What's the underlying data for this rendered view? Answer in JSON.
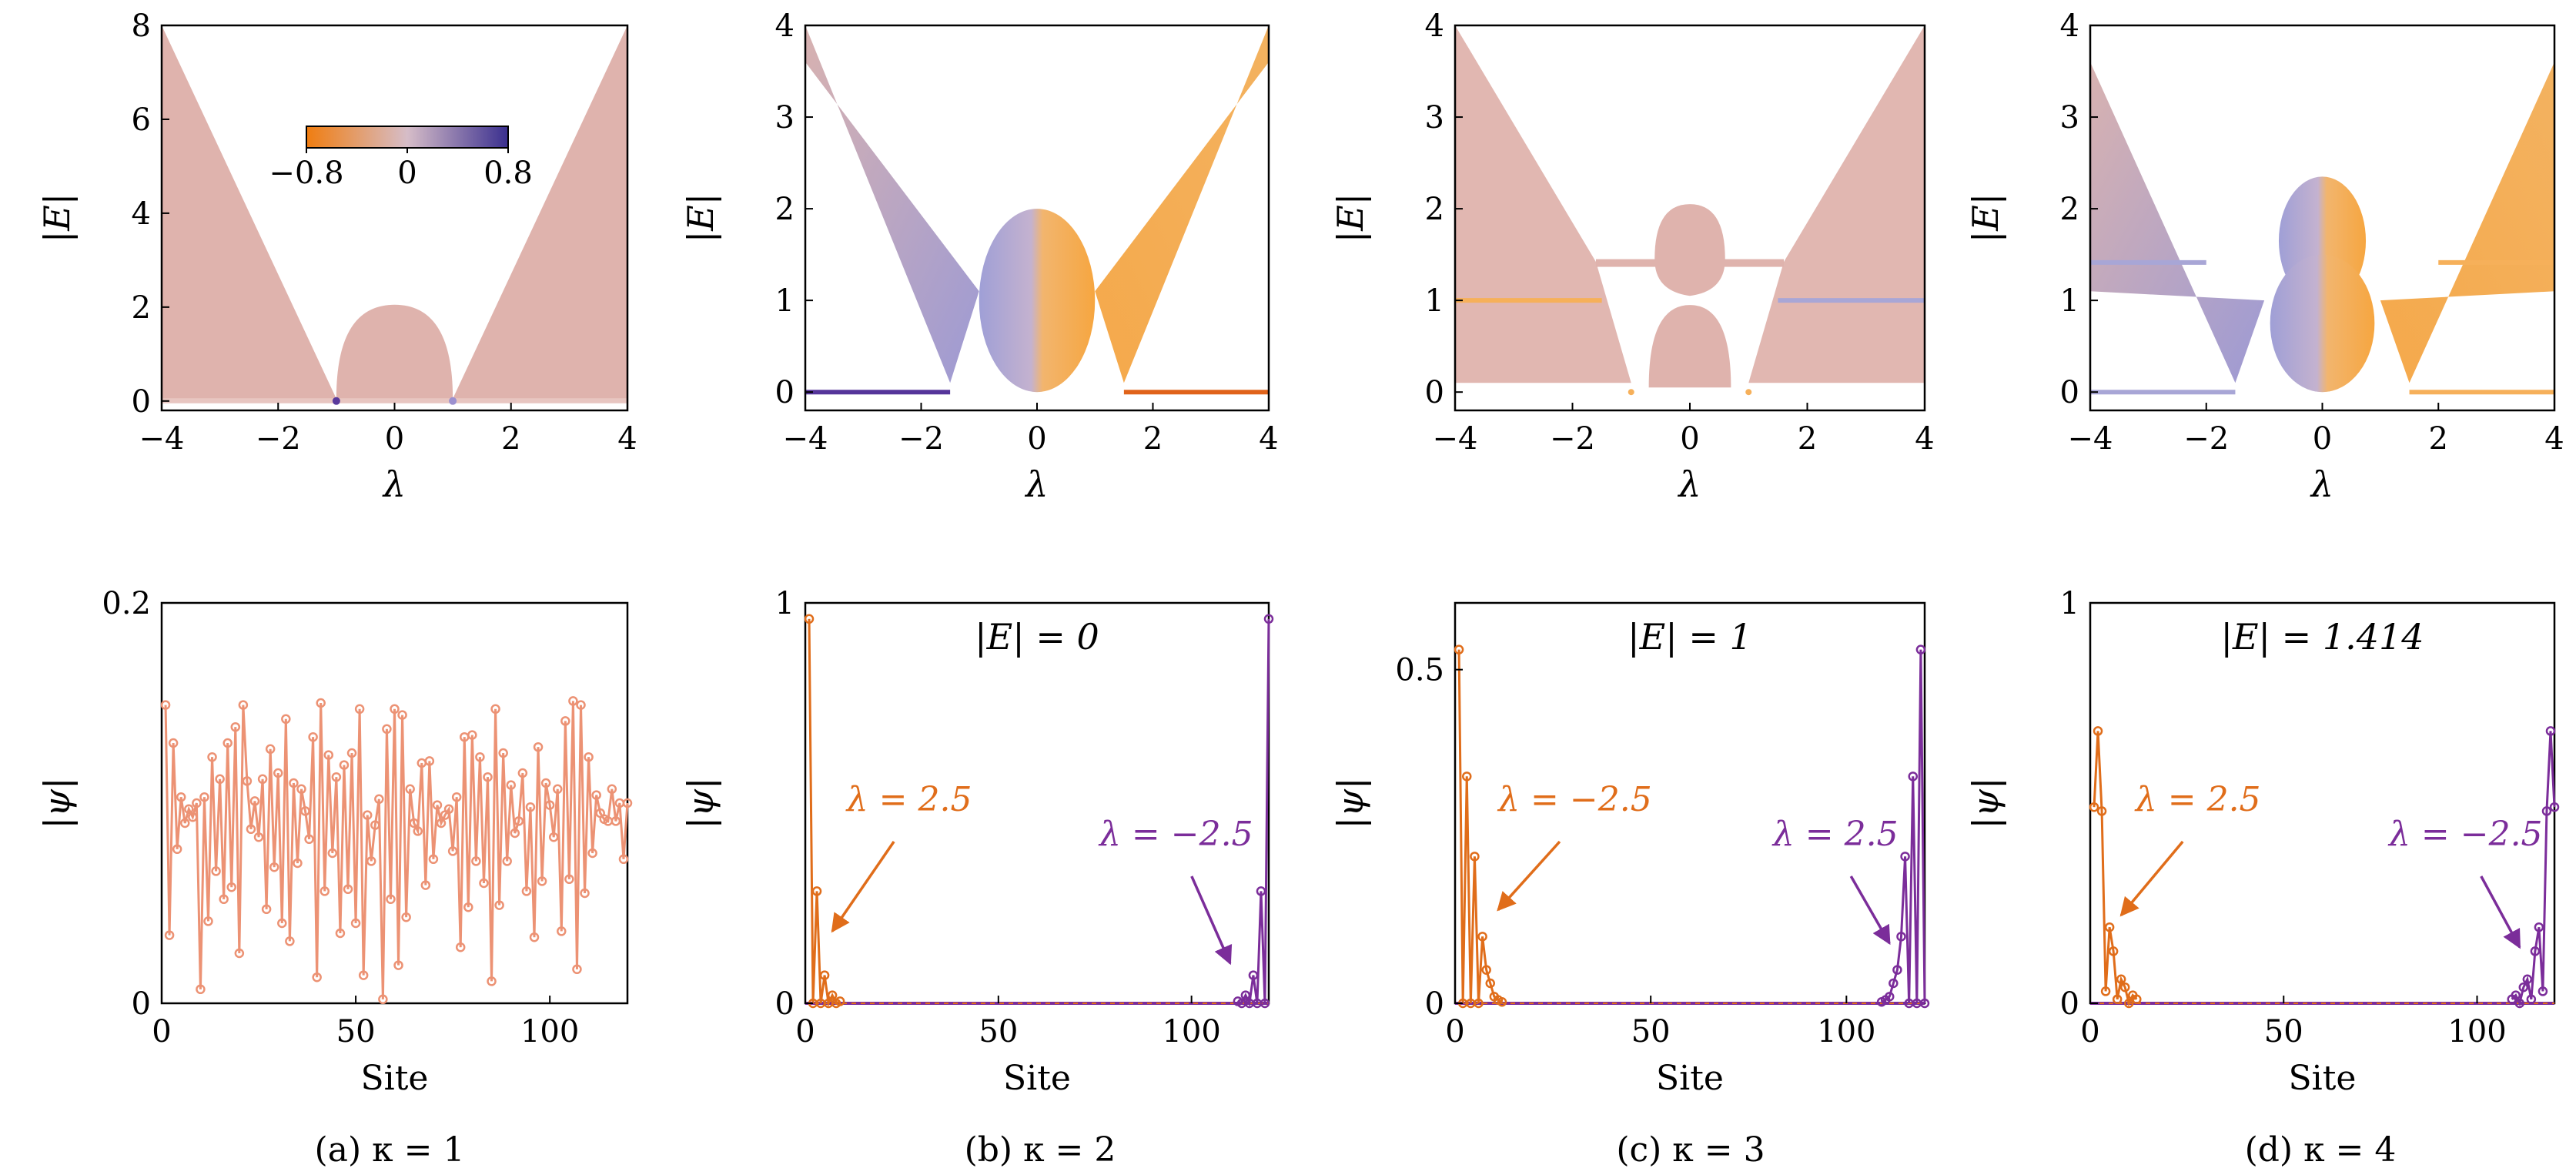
{
  "colors": {
    "orange": "#e06d1a",
    "purple": "#7b2d9a",
    "salmon": "#ec9274",
    "pink_band": "#dfb3ad",
    "cb_left": "#f08a1e",
    "cb_mid": "#cfc0d6",
    "cb_right": "#3a2f8f",
    "light_orange": "#f6b05a",
    "light_purple": "#a8a6d6"
  },
  "colorbar": {
    "ticks": [
      "−0.8",
      "0",
      "0.8"
    ],
    "range": [
      -0.8,
      0.8
    ]
  },
  "chart_data": [
    {
      "id": "a-top",
      "type": "scatter",
      "description_kind": "spectrum",
      "xlabel": "λ",
      "ylabel": "|E|",
      "xlim": [
        -4,
        4
      ],
      "ylim": [
        -0.2,
        8
      ],
      "xticks": [
        "−4",
        "−2",
        "0",
        "2",
        "4"
      ],
      "yticks": [
        "0",
        "2",
        "4",
        "6",
        "8"
      ],
      "ytick_values": [
        0,
        2,
        4,
        6,
        8
      ],
      "xtick_values": [
        -4,
        -2,
        0,
        2,
        4
      ],
      "spectrum": {
        "outer_max_at_edge": 8,
        "dome_peak": 2,
        "dome_halfwidth": 1,
        "points": [
          {
            "x": -1,
            "y": 0,
            "name": "zero-mode-left"
          },
          {
            "x": 1,
            "y": 0,
            "name": "zero-mode-right"
          }
        ]
      }
    },
    {
      "id": "b-top",
      "type": "scatter",
      "description_kind": "spectrum",
      "xlabel": "λ",
      "ylabel": "|E|",
      "xlim": [
        -4,
        4
      ],
      "ylim": [
        -0.2,
        4
      ],
      "xticks": [
        "−4",
        "−2",
        "0",
        "2",
        "4"
      ],
      "yticks": [
        "0",
        "1",
        "2",
        "3",
        "4"
      ],
      "ytick_values": [
        0,
        1,
        2,
        3,
        4
      ],
      "xtick_values": [
        -4,
        -2,
        0,
        2,
        4
      ],
      "spectrum": {
        "ellipse_peak": 2,
        "ellipse_halfwidth": 1,
        "zero_mode_left": [
          -4,
          -1.5
        ],
        "zero_mode_right": [
          1.5,
          4
        ]
      }
    },
    {
      "id": "c-top",
      "type": "scatter",
      "description_kind": "spectrum",
      "xlabel": "λ",
      "ylabel": "|E|",
      "xlim": [
        -4,
        4
      ],
      "ylim": [
        -0.2,
        4
      ],
      "xticks": [
        "−4",
        "−2",
        "0",
        "2",
        "4"
      ],
      "yticks": [
        "0",
        "1",
        "2",
        "3",
        "4"
      ],
      "ytick_values": [
        0,
        1,
        2,
        3,
        4
      ],
      "xtick_values": [
        -4,
        -2,
        0,
        2,
        4
      ],
      "spectrum": {
        "flat_level": 1,
        "flat_left": [
          -4,
          -1.5
        ],
        "flat_right": [
          1.5,
          4
        ]
      }
    },
    {
      "id": "d-top",
      "type": "scatter",
      "description_kind": "spectrum",
      "xlabel": "λ",
      "ylabel": "|E|",
      "xlim": [
        -4,
        4
      ],
      "ylim": [
        -0.2,
        4
      ],
      "xticks": [
        "−4",
        "−2",
        "0",
        "2",
        "4"
      ],
      "yticks": [
        "0",
        "1",
        "2",
        "3",
        "4"
      ],
      "ytick_values": [
        0,
        1,
        2,
        3,
        4
      ],
      "xtick_values": [
        -4,
        -2,
        0,
        2,
        4
      ],
      "spectrum": {
        "flat_level": 1.414,
        "zero_mode_left": [
          -4,
          -1.5
        ],
        "zero_mode_right": [
          1.5,
          4
        ]
      }
    },
    {
      "id": "a-bottom",
      "type": "line",
      "xlabel": "Site",
      "ylabel": "|ψ|",
      "xlim": [
        0,
        120
      ],
      "ylim": [
        0,
        0.2
      ],
      "xticks": [
        "0",
        "50",
        "100"
      ],
      "xtick_values": [
        0,
        50,
        100
      ],
      "yticks": [
        "0",
        "0.2"
      ],
      "ytick_values": [
        0,
        0.2
      ],
      "series": [
        {
          "name": "extended",
          "color": "salmon",
          "x_start": 1,
          "values": [
            0.149,
            0.034,
            0.13,
            0.077,
            0.103,
            0.09,
            0.097,
            0.093,
            0.1,
            0.007,
            0.103,
            0.041,
            0.123,
            0.066,
            0.112,
            0.052,
            0.13,
            0.058,
            0.138,
            0.025,
            0.149,
            0.111,
            0.087,
            0.101,
            0.083,
            0.112,
            0.047,
            0.127,
            0.068,
            0.115,
            0.04,
            0.142,
            0.031,
            0.11,
            0.07,
            0.107,
            0.096,
            0.082,
            0.133,
            0.013,
            0.15,
            0.056,
            0.124,
            0.075,
            0.113,
            0.035,
            0.119,
            0.057,
            0.125,
            0.04,
            0.147,
            0.014,
            0.094,
            0.071,
            0.089,
            0.102,
            0.002,
            0.137,
            0.052,
            0.147,
            0.019,
            0.144,
            0.043,
            0.107,
            0.09,
            0.086,
            0.12,
            0.059,
            0.121,
            0.072,
            0.099,
            0.09,
            0.094,
            0.097,
            0.076,
            0.103,
            0.028,
            0.133,
            0.048,
            0.134,
            0.071,
            0.123,
            0.06,
            0.113,
            0.011,
            0.147,
            0.049,
            0.125,
            0.071,
            0.109,
            0.085,
            0.091,
            0.115,
            0.056,
            0.098,
            0.033,
            0.128,
            0.061,
            0.11,
            0.099,
            0.083,
            0.107,
            0.036,
            0.141,
            0.062,
            0.151,
            0.017,
            0.149,
            0.055,
            0.123,
            0.075,
            0.104,
            0.095,
            0.092,
            0.091,
            0.107,
            0.091,
            0.1,
            0.072,
            0.1
          ]
        }
      ]
    },
    {
      "id": "b-bottom",
      "type": "line",
      "xlabel": "Site",
      "ylabel": "|ψ|",
      "xlim": [
        0,
        120
      ],
      "ylim": [
        0,
        1
      ],
      "xticks": [
        "0",
        "50",
        "100"
      ],
      "xtick_values": [
        0,
        50,
        100
      ],
      "yticks": [
        "0",
        "1"
      ],
      "ytick_values": [
        0,
        1
      ],
      "inset_label": "|E| = 0",
      "series": [
        {
          "name": "λ = 2.5",
          "color": "orange",
          "x_start": 1,
          "values": [
            0.96,
            0.0,
            0.28,
            0.0,
            0.07,
            0.0,
            0.02,
            0.0,
            0.005
          ]
        },
        {
          "name": "λ = −2.5",
          "color": "purple",
          "x_end": 120,
          "values": [
            0.005,
            0.0,
            0.02,
            0.0,
            0.07,
            0.0,
            0.28,
            0.0,
            0.96
          ]
        }
      ],
      "annotations": [
        {
          "text": "λ = 2.5",
          "color": "orange",
          "target": [
            7,
            0.18
          ]
        },
        {
          "text": "λ = −2.5",
          "color": "purple",
          "target": [
            110,
            0.1
          ]
        }
      ]
    },
    {
      "id": "c-bottom",
      "type": "line",
      "xlabel": "Site",
      "ylabel": "|ψ|",
      "xlim": [
        0,
        120
      ],
      "ylim": [
        0,
        0.6
      ],
      "xticks": [
        "0",
        "50",
        "100"
      ],
      "xtick_values": [
        0,
        50,
        100
      ],
      "yticks": [
        "0",
        "0.5"
      ],
      "ytick_values": [
        0,
        0.5
      ],
      "inset_label": "|E| = 1",
      "series": [
        {
          "name": "λ = −2.5",
          "color": "orange",
          "x_start": 1,
          "values": [
            0.53,
            0.0,
            0.34,
            0.0,
            0.22,
            0.0,
            0.1,
            0.05,
            0.03,
            0.01,
            0.005,
            0.002
          ]
        },
        {
          "name": "λ = 2.5",
          "color": "purple",
          "x_end": 120,
          "values": [
            0.002,
            0.005,
            0.01,
            0.03,
            0.05,
            0.1,
            0.22,
            0.0,
            0.34,
            0.0,
            0.53,
            0.0
          ]
        }
      ],
      "annotations": [
        {
          "text": "λ = −2.5",
          "color": "orange",
          "target": [
            11,
            0.14
          ]
        },
        {
          "text": "λ = 2.5",
          "color": "purple",
          "target": [
            111,
            0.09
          ]
        }
      ]
    },
    {
      "id": "d-bottom",
      "type": "line",
      "xlabel": "Site",
      "ylabel": "|ψ|",
      "xlim": [
        0,
        120
      ],
      "ylim": [
        0,
        1
      ],
      "xticks": [
        "0",
        "50",
        "100"
      ],
      "xtick_values": [
        0,
        50,
        100
      ],
      "yticks": [
        "0",
        "1"
      ],
      "ytick_values": [
        0,
        1
      ],
      "inset_label": "|E| = 1.414",
      "series": [
        {
          "name": "λ = 2.5",
          "color": "orange",
          "x_start": 1,
          "values": [
            0.49,
            0.68,
            0.48,
            0.03,
            0.19,
            0.13,
            0.01,
            0.06,
            0.04,
            0.0,
            0.02,
            0.01
          ]
        },
        {
          "name": "λ = −2.5",
          "color": "purple",
          "x_end": 120,
          "values": [
            0.01,
            0.02,
            0.0,
            0.04,
            0.06,
            0.01,
            0.13,
            0.19,
            0.03,
            0.48,
            0.68,
            0.49
          ]
        }
      ],
      "annotations": [
        {
          "text": "λ = 2.5",
          "color": "orange",
          "target": [
            8,
            0.22
          ]
        },
        {
          "text": "λ = −2.5",
          "color": "purple",
          "target": [
            111,
            0.14
          ]
        }
      ]
    }
  ],
  "captions": [
    "(a) κ = 1",
    "(b) κ = 2",
    "(c) κ = 3",
    "(d) κ = 4"
  ]
}
